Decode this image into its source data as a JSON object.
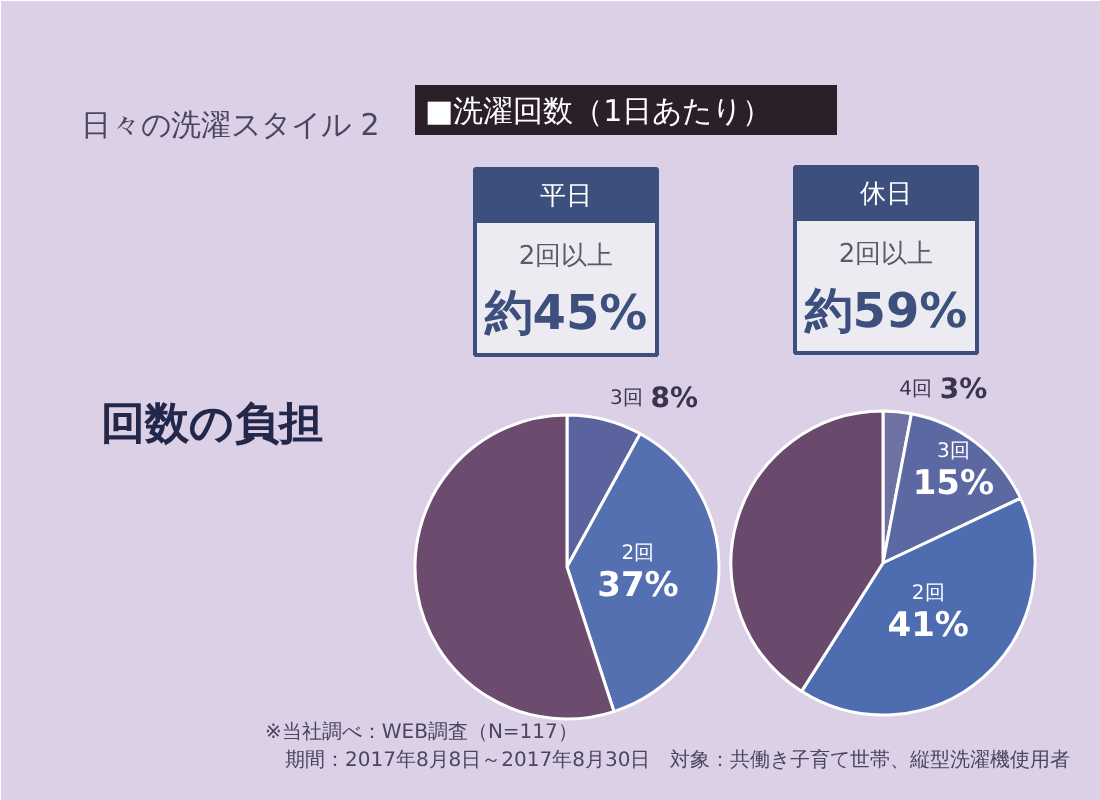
{
  "chart_data": [
    {
      "type": "other",
      "title": "日々の洗濯スタイル 2",
      "annotations": [
        "回数の負担",
        "■洗濯回数（1日あたり）",
        "※当社調べ：WEB調査（N=117）",
        "期間：2017年8月8日～2017年8月30日　対象：共働き子育て世帯、縦型洗濯機使用者"
      ]
    },
    {
      "type": "pie",
      "title": "平日",
      "categories": [
        "3回",
        "2回",
        null
      ],
      "values": [
        8,
        37,
        55
      ],
      "colors": [
        "#5b639f",
        "#5470b0",
        "#6b4c6e"
      ],
      "value_labels": [
        "8%",
        "37%",
        null
      ],
      "annotations": [
        "2回以上",
        "約45%"
      ]
    },
    {
      "type": "pie",
      "title": "休日",
      "categories": [
        "4回",
        "3回",
        "2回",
        null
      ],
      "values": [
        3,
        15,
        41,
        41
      ],
      "colors": [
        "#6d72a2",
        "#5c68a2",
        "#4e6db0",
        "#6a4a6c"
      ],
      "value_labels": [
        "3%",
        "15%",
        "41%",
        null
      ],
      "annotations": [
        "2回以上",
        "約59%"
      ]
    }
  ]
}
